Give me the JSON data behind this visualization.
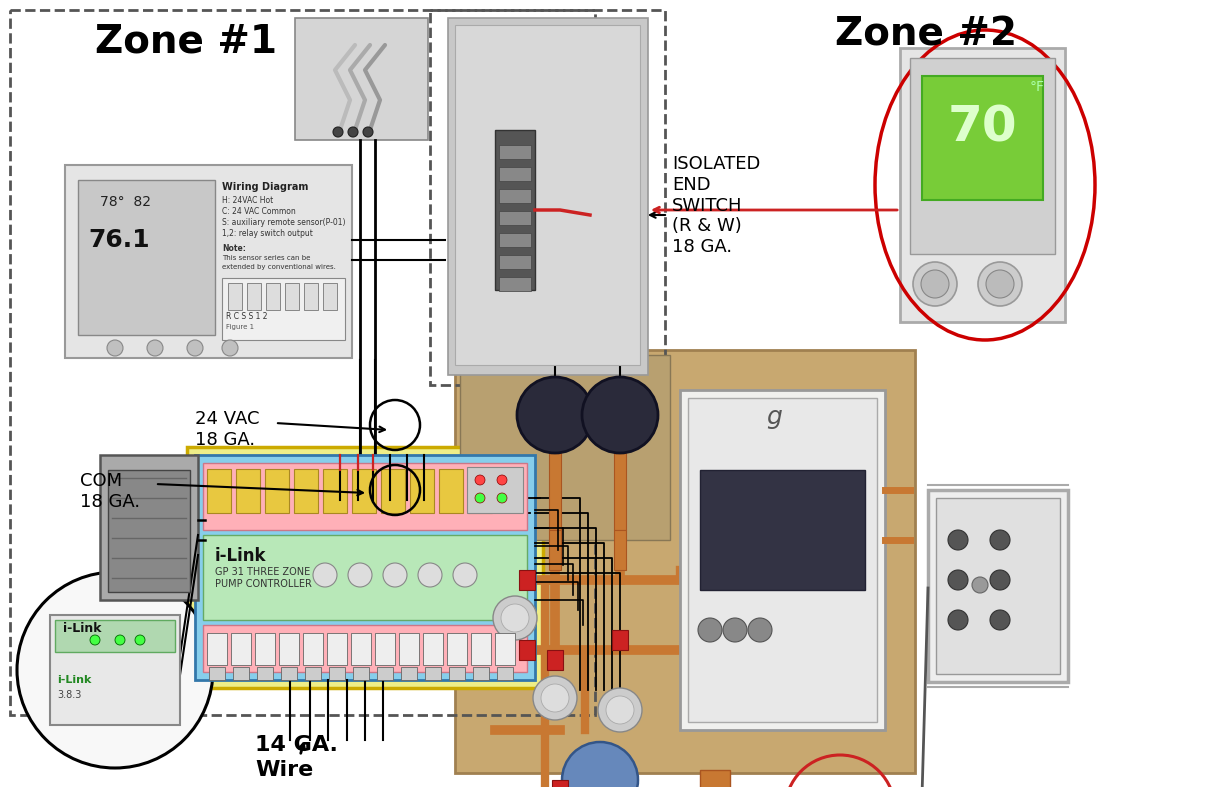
{
  "background_color": "#ffffff",
  "zone1_label": "Zone #1",
  "zone2_label": "Zone #2",
  "isolated_end_switch_label": "ISOLATED\nEND\nSWITCH\n(R & W)\n18 GA.",
  "label_24vac": "24 VAC\n18 GA.",
  "label_com": "COM\n18 GA.",
  "label_14ga": "14 GA.\nWire",
  "font_size_zone": 26,
  "font_size_label": 13,
  "font_size_small": 8,
  "wire_color": "#000000",
  "zone2_circle_color": "#cc0000",
  "photo_bg": "#c8a870",
  "photo_border": "#a08050",
  "copper_color": "#c87832",
  "pump_dark": "#2a2a3a",
  "boiler_white": "#f0f0ee",
  "tank_blue": "#6688aa"
}
